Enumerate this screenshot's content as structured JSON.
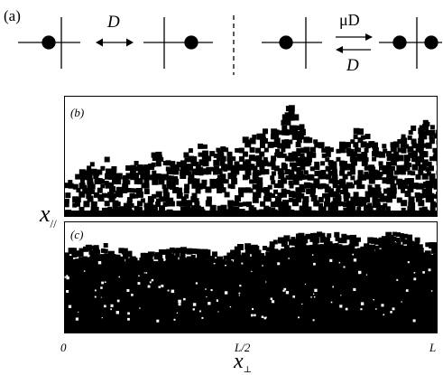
{
  "part_a": {
    "label": "(a)",
    "left_rate": "D",
    "right_rate_top": "μD",
    "right_rate_bottom": "D"
  },
  "panel_b": {
    "label": "(b)"
  },
  "panel_c": {
    "label": "(c)"
  },
  "axes": {
    "ylabel_main": "x",
    "ylabel_sub": "//",
    "xlabel_main": "x",
    "xlabel_sub": "⊥",
    "xticks": [
      "0",
      "L/2",
      "L"
    ]
  }
}
